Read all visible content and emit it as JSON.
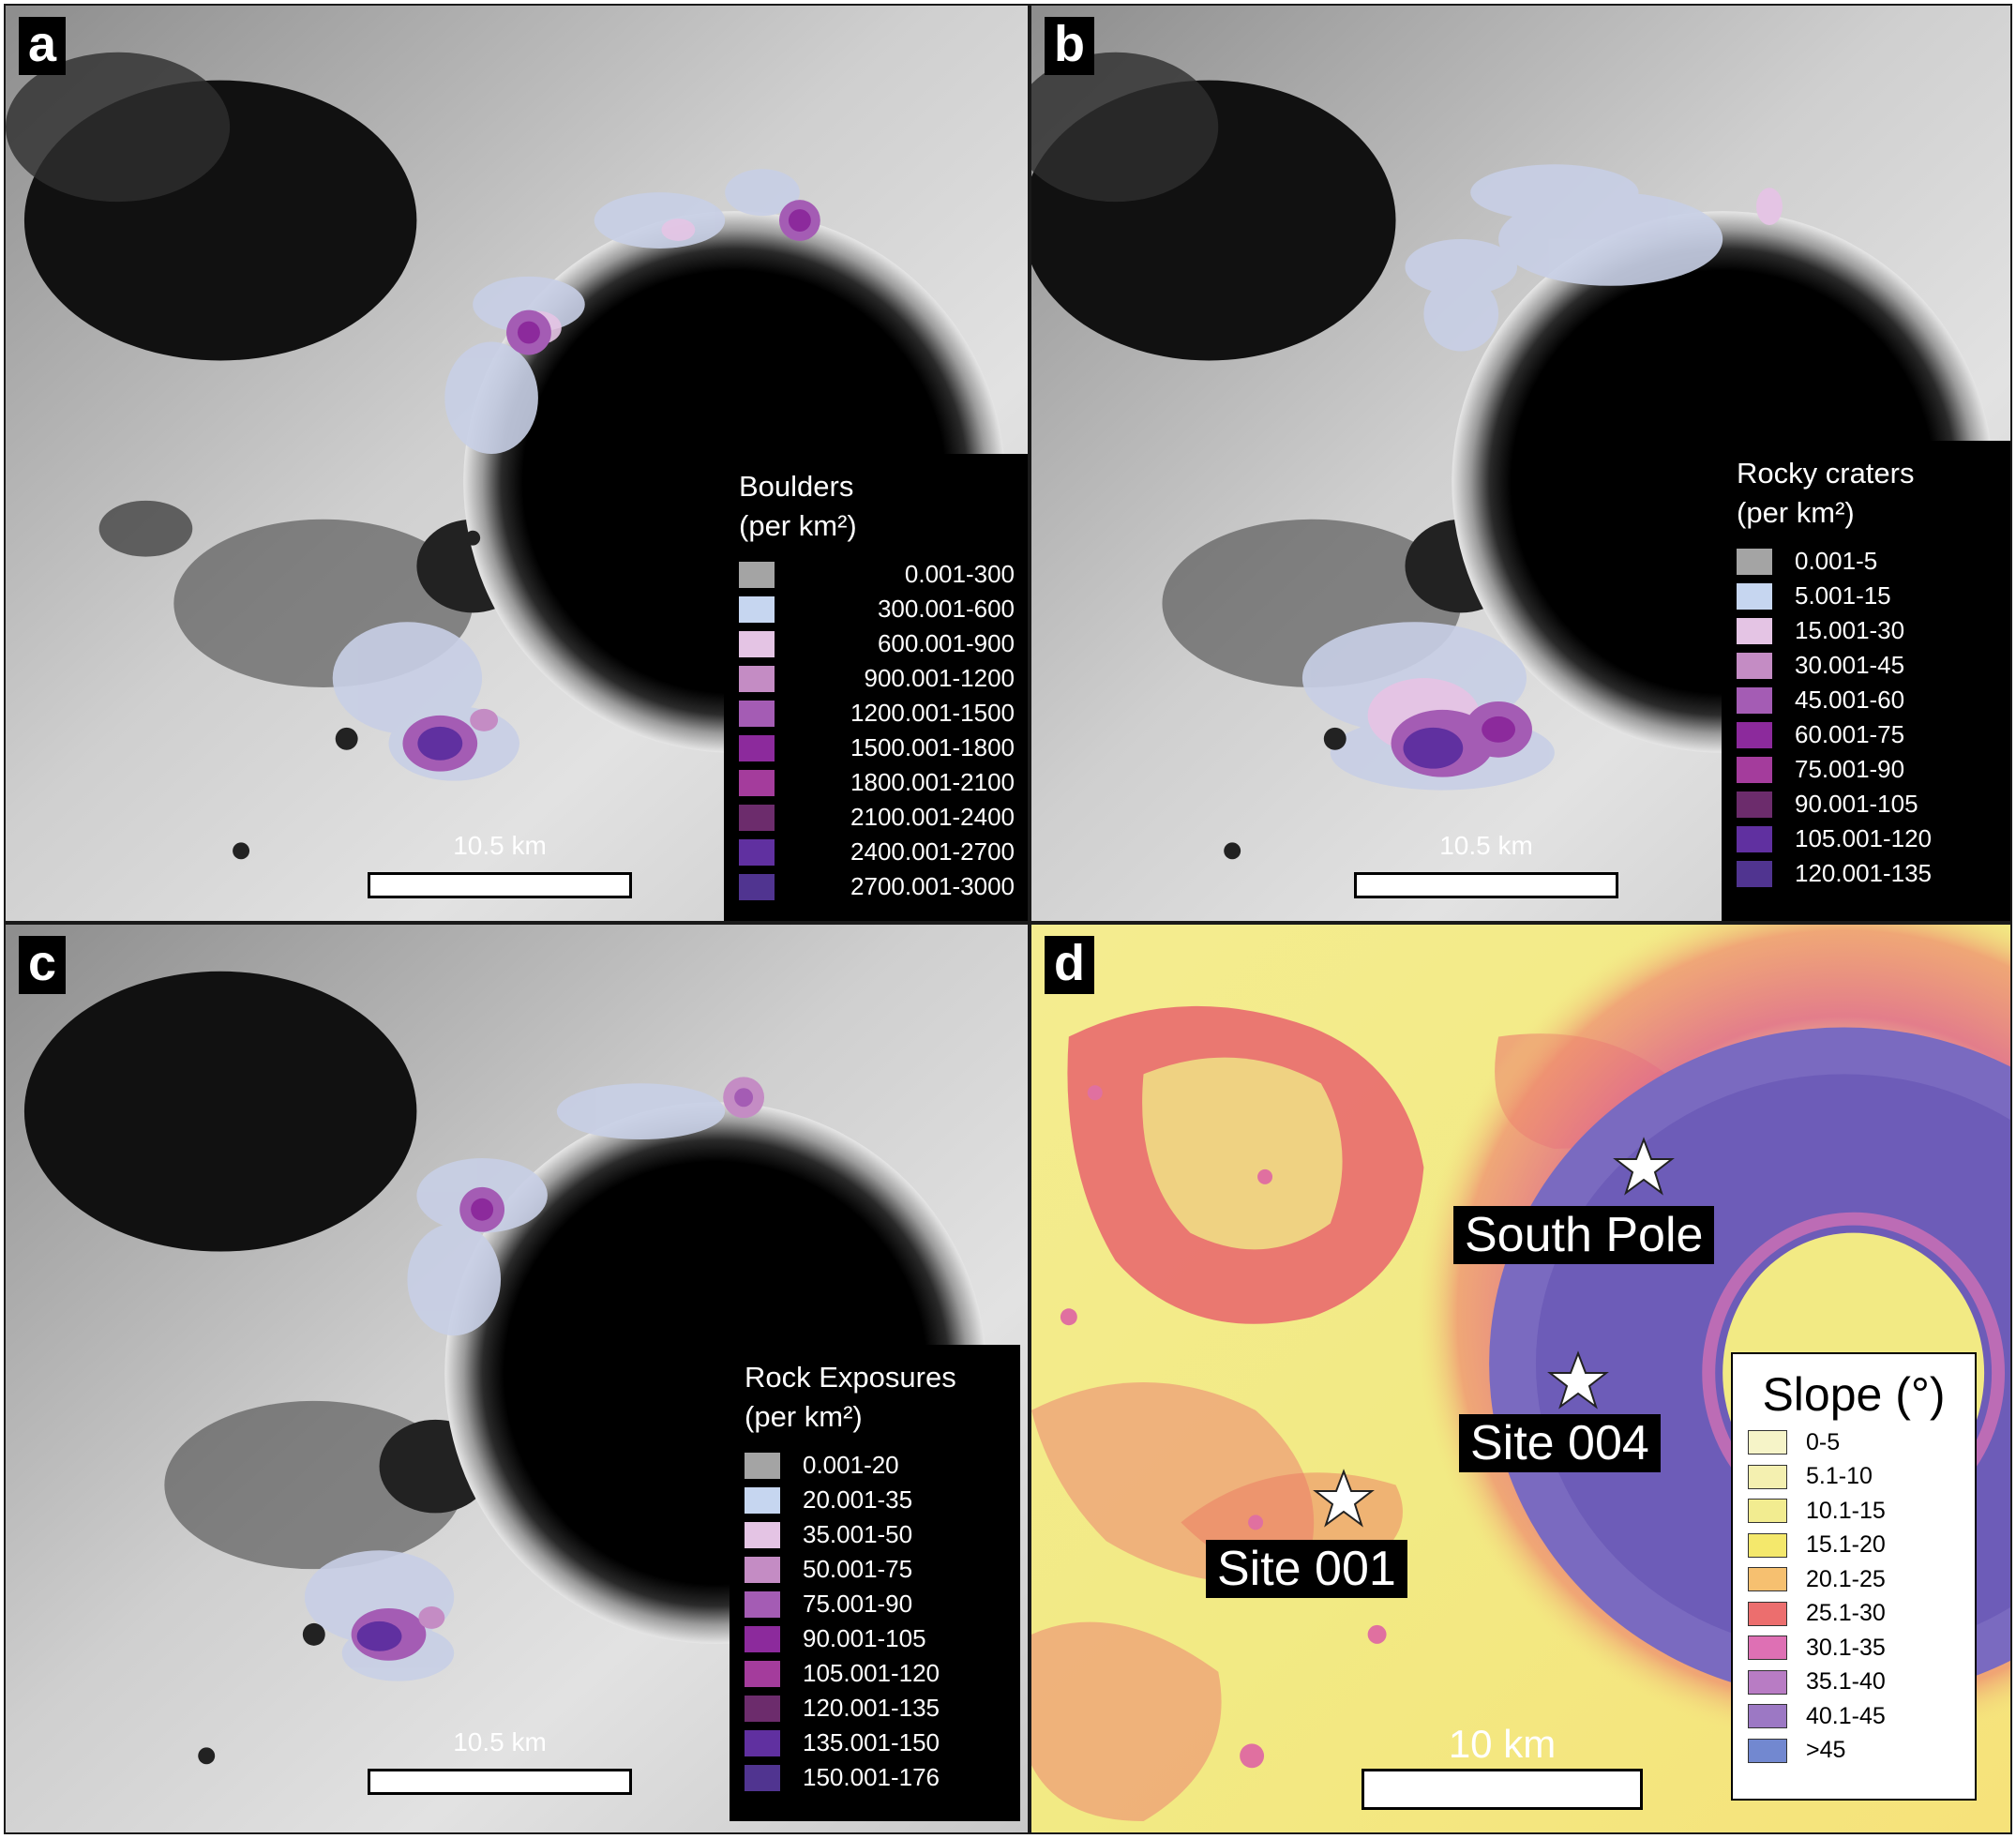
{
  "panels": {
    "a": {
      "label": "a",
      "legend": {
        "title_line1": "Boulders",
        "title_line2": "(per km²)",
        "items": [
          {
            "label": "0.001-300",
            "color": "#a4a4a4"
          },
          {
            "label": "300.001-600",
            "color": "#c6d6f0"
          },
          {
            "label": "600.001-900",
            "color": "#e4c4e4"
          },
          {
            "label": "900.001-1200",
            "color": "#c48cc4"
          },
          {
            "label": "1200.001-1500",
            "color": "#a45cb4"
          },
          {
            "label": "1500.001-1800",
            "color": "#8c2a9c"
          },
          {
            "label": "1800.001-2100",
            "color": "#a43c9c"
          },
          {
            "label": "2100.001-2400",
            "color": "#6c2c6c"
          },
          {
            "label": "2400.001-2700",
            "color": "#6030a0"
          },
          {
            "label": "2700.001-3000",
            "color": "#503490"
          }
        ]
      },
      "scale": "10.5 km"
    },
    "b": {
      "label": "b",
      "legend": {
        "title_line1": "Rocky craters",
        "title_line2": "(per km²)",
        "items": [
          {
            "label": "0.001-5",
            "color": "#a4a4a4"
          },
          {
            "label": "5.001-15",
            "color": "#c6d6f0"
          },
          {
            "label": "15.001-30",
            "color": "#e4c4e4"
          },
          {
            "label": "30.001-45",
            "color": "#c48cc4"
          },
          {
            "label": "45.001-60",
            "color": "#a45cb4"
          },
          {
            "label": "60.001-75",
            "color": "#8c2a9c"
          },
          {
            "label": "75.001-90",
            "color": "#a43c9c"
          },
          {
            "label": "90.001-105",
            "color": "#6c2c6c"
          },
          {
            "label": "105.001-120",
            "color": "#6030a0"
          },
          {
            "label": "120.001-135",
            "color": "#503490"
          }
        ]
      },
      "scale": "10.5 km"
    },
    "c": {
      "label": "c",
      "legend": {
        "title_line1": "Rock Exposures",
        "title_line2": "(per km²)",
        "items": [
          {
            "label": "0.001-20",
            "color": "#a4a4a4"
          },
          {
            "label": "20.001-35",
            "color": "#c6d6f0"
          },
          {
            "label": "35.001-50",
            "color": "#e4c4e4"
          },
          {
            "label": "50.001-75",
            "color": "#c48cc4"
          },
          {
            "label": "75.001-90",
            "color": "#a45cb4"
          },
          {
            "label": "90.001-105",
            "color": "#8c2a9c"
          },
          {
            "label": "105.001-120",
            "color": "#a43c9c"
          },
          {
            "label": "120.001-135",
            "color": "#6c2c6c"
          },
          {
            "label": "135.001-150",
            "color": "#6030a0"
          },
          {
            "label": "150.001-176",
            "color": "#503490"
          }
        ]
      },
      "scale": "10.5 km"
    },
    "d": {
      "label": "d",
      "legend": {
        "title": "Slope (°)",
        "items": [
          {
            "label": "0-5",
            "color": "#f6f4c8"
          },
          {
            "label": "5.1-10",
            "color": "#f4f0b0"
          },
          {
            "label": "10.1-15",
            "color": "#f2ec90"
          },
          {
            "label": "15.1-20",
            "color": "#f4e86c"
          },
          {
            "label": "20.1-25",
            "color": "#f6c070"
          },
          {
            "label": "25.1-30",
            "color": "#ec6e6e"
          },
          {
            "label": "30.1-35",
            "color": "#de70b4"
          },
          {
            "label": "35.1-40",
            "color": "#b87cc4"
          },
          {
            "label": "40.1-45",
            "color": "#9c78c4"
          },
          {
            "label": ">45",
            "color": "#7288d0"
          }
        ]
      },
      "sites": [
        {
          "label": "South Pole"
        },
        {
          "label": "Site 004"
        },
        {
          "label": "Site 001"
        }
      ],
      "scale": "10 km"
    }
  }
}
